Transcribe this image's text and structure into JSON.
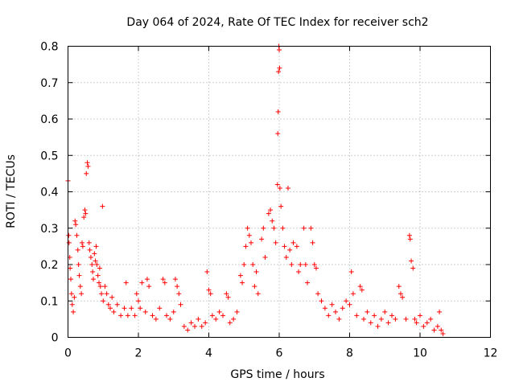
{
  "chart_data": {
    "type": "scatter",
    "title": "Day 064 of 2024, Rate Of TEC Index for receiver sch2",
    "xlabel": "GPS time / hours",
    "ylabel": "ROTI / TECUs",
    "xlim": [
      0,
      12
    ],
    "ylim": [
      0,
      0.8
    ],
    "xticks": [
      0,
      2,
      4,
      6,
      8,
      10,
      12
    ],
    "yticks": [
      0,
      0.1,
      0.2,
      0.3,
      0.4,
      0.5,
      0.6,
      0.7,
      0.8
    ],
    "grid": true,
    "marker": "plus",
    "color": "#ff0000",
    "series": [
      {
        "name": "ROTI",
        "points": [
          [
            0.0,
            0.43
          ],
          [
            0.02,
            0.28
          ],
          [
            0.03,
            0.26
          ],
          [
            0.05,
            0.22
          ],
          [
            0.06,
            0.19
          ],
          [
            0.08,
            0.16
          ],
          [
            0.1,
            0.12
          ],
          [
            0.12,
            0.09
          ],
          [
            0.15,
            0.07
          ],
          [
            0.18,
            0.11
          ],
          [
            0.2,
            0.32
          ],
          [
            0.22,
            0.31
          ],
          [
            0.25,
            0.28
          ],
          [
            0.28,
            0.24
          ],
          [
            0.3,
            0.2
          ],
          [
            0.32,
            0.17
          ],
          [
            0.35,
            0.14
          ],
          [
            0.38,
            0.12
          ],
          [
            0.4,
            0.26
          ],
          [
            0.42,
            0.25
          ],
          [
            0.45,
            0.33
          ],
          [
            0.48,
            0.35
          ],
          [
            0.5,
            0.34
          ],
          [
            0.52,
            0.45
          ],
          [
            0.55,
            0.48
          ],
          [
            0.57,
            0.47
          ],
          [
            0.6,
            0.26
          ],
          [
            0.62,
            0.24
          ],
          [
            0.65,
            0.22
          ],
          [
            0.68,
            0.2
          ],
          [
            0.7,
            0.18
          ],
          [
            0.72,
            0.16
          ],
          [
            0.75,
            0.23
          ],
          [
            0.78,
            0.21
          ],
          [
            0.8,
            0.25
          ],
          [
            0.82,
            0.2
          ],
          [
            0.85,
            0.17
          ],
          [
            0.88,
            0.15
          ],
          [
            0.9,
            0.19
          ],
          [
            0.92,
            0.14
          ],
          [
            0.95,
            0.12
          ],
          [
            0.98,
            0.36
          ],
          [
            1.0,
            0.1
          ],
          [
            1.05,
            0.14
          ],
          [
            1.1,
            0.12
          ],
          [
            1.15,
            0.09
          ],
          [
            1.2,
            0.08
          ],
          [
            1.25,
            0.11
          ],
          [
            1.3,
            0.07
          ],
          [
            1.4,
            0.09
          ],
          [
            1.5,
            0.06
          ],
          [
            1.6,
            0.08
          ],
          [
            1.65,
            0.15
          ],
          [
            1.7,
            0.06
          ],
          [
            1.8,
            0.08
          ],
          [
            1.9,
            0.06
          ],
          [
            1.95,
            0.12
          ],
          [
            2.0,
            0.1
          ],
          [
            2.05,
            0.08
          ],
          [
            2.1,
            0.15
          ],
          [
            2.2,
            0.07
          ],
          [
            2.25,
            0.16
          ],
          [
            2.3,
            0.14
          ],
          [
            2.4,
            0.06
          ],
          [
            2.5,
            0.05
          ],
          [
            2.6,
            0.08
          ],
          [
            2.7,
            0.16
          ],
          [
            2.75,
            0.15
          ],
          [
            2.8,
            0.06
          ],
          [
            2.9,
            0.05
          ],
          [
            3.0,
            0.07
          ],
          [
            3.05,
            0.16
          ],
          [
            3.1,
            0.14
          ],
          [
            3.15,
            0.12
          ],
          [
            3.2,
            0.09
          ],
          [
            3.3,
            0.03
          ],
          [
            3.4,
            0.02
          ],
          [
            3.5,
            0.04
          ],
          [
            3.6,
            0.03
          ],
          [
            3.7,
            0.05
          ],
          [
            3.8,
            0.03
          ],
          [
            3.9,
            0.04
          ],
          [
            3.95,
            0.18
          ],
          [
            4.0,
            0.13
          ],
          [
            4.05,
            0.12
          ],
          [
            4.1,
            0.06
          ],
          [
            4.2,
            0.05
          ],
          [
            4.3,
            0.07
          ],
          [
            4.4,
            0.06
          ],
          [
            4.5,
            0.12
          ],
          [
            4.55,
            0.11
          ],
          [
            4.6,
            0.04
          ],
          [
            4.7,
            0.05
          ],
          [
            4.8,
            0.07
          ],
          [
            4.9,
            0.17
          ],
          [
            4.95,
            0.15
          ],
          [
            5.0,
            0.2
          ],
          [
            5.05,
            0.25
          ],
          [
            5.1,
            0.3
          ],
          [
            5.15,
            0.28
          ],
          [
            5.2,
            0.26
          ],
          [
            5.25,
            0.2
          ],
          [
            5.3,
            0.14
          ],
          [
            5.35,
            0.18
          ],
          [
            5.4,
            0.12
          ],
          [
            5.5,
            0.27
          ],
          [
            5.55,
            0.3
          ],
          [
            5.6,
            0.22
          ],
          [
            5.7,
            0.34
          ],
          [
            5.75,
            0.35
          ],
          [
            5.8,
            0.32
          ],
          [
            5.85,
            0.3
          ],
          [
            5.9,
            0.26
          ],
          [
            5.95,
            0.42
          ],
          [
            5.96,
            0.56
          ],
          [
            5.97,
            0.62
          ],
          [
            5.98,
            0.73
          ],
          [
            5.99,
            0.8
          ],
          [
            6.0,
            0.79
          ],
          [
            6.01,
            0.74
          ],
          [
            6.02,
            0.41
          ],
          [
            6.05,
            0.36
          ],
          [
            6.1,
            0.3
          ],
          [
            6.15,
            0.25
          ],
          [
            6.2,
            0.22
          ],
          [
            6.25,
            0.41
          ],
          [
            6.3,
            0.24
          ],
          [
            6.35,
            0.2
          ],
          [
            6.4,
            0.26
          ],
          [
            6.5,
            0.25
          ],
          [
            6.55,
            0.18
          ],
          [
            6.6,
            0.2
          ],
          [
            6.7,
            0.3
          ],
          [
            6.75,
            0.2
          ],
          [
            6.8,
            0.15
          ],
          [
            6.9,
            0.3
          ],
          [
            6.95,
            0.26
          ],
          [
            7.0,
            0.2
          ],
          [
            7.05,
            0.19
          ],
          [
            7.1,
            0.12
          ],
          [
            7.2,
            0.1
          ],
          [
            7.3,
            0.08
          ],
          [
            7.4,
            0.06
          ],
          [
            7.5,
            0.09
          ],
          [
            7.6,
            0.07
          ],
          [
            7.7,
            0.05
          ],
          [
            7.8,
            0.08
          ],
          [
            7.9,
            0.1
          ],
          [
            8.0,
            0.09
          ],
          [
            8.05,
            0.18
          ],
          [
            8.1,
            0.12
          ],
          [
            8.2,
            0.06
          ],
          [
            8.3,
            0.14
          ],
          [
            8.35,
            0.13
          ],
          [
            8.4,
            0.05
          ],
          [
            8.5,
            0.07
          ],
          [
            8.6,
            0.04
          ],
          [
            8.7,
            0.06
          ],
          [
            8.8,
            0.03
          ],
          [
            8.9,
            0.05
          ],
          [
            9.0,
            0.07
          ],
          [
            9.1,
            0.04
          ],
          [
            9.2,
            0.06
          ],
          [
            9.3,
            0.05
          ],
          [
            9.4,
            0.14
          ],
          [
            9.45,
            0.12
          ],
          [
            9.5,
            0.11
          ],
          [
            9.6,
            0.05
          ],
          [
            9.7,
            0.28
          ],
          [
            9.72,
            0.27
          ],
          [
            9.75,
            0.21
          ],
          [
            9.8,
            0.19
          ],
          [
            9.85,
            0.05
          ],
          [
            9.9,
            0.04
          ],
          [
            10.0,
            0.06
          ],
          [
            10.1,
            0.03
          ],
          [
            10.2,
            0.04
          ],
          [
            10.3,
            0.05
          ],
          [
            10.4,
            0.02
          ],
          [
            10.5,
            0.03
          ],
          [
            10.55,
            0.07
          ],
          [
            10.6,
            0.02
          ],
          [
            10.65,
            0.01
          ]
        ]
      }
    ]
  }
}
